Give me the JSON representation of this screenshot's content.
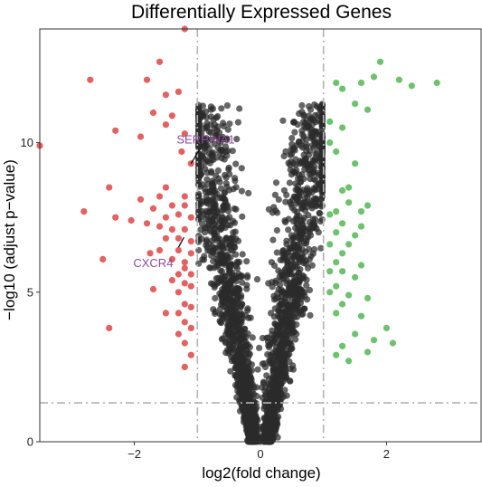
{
  "chart_data": {
    "type": "scatter",
    "title": "Differentially Expressed Genes",
    "xlabel": "log2(fold change)",
    "ylabel": "−log10 (adjust p−value)",
    "xlim": [
      -3.5,
      3.5
    ],
    "ylim": [
      0,
      13.8
    ],
    "x_ticks": [
      -2,
      0,
      2
    ],
    "x_tick_labels": [
      "−2",
      "0",
      "2"
    ],
    "y_ticks": [
      0,
      5,
      10
    ],
    "y_tick_labels": [
      "0",
      "5",
      "10"
    ],
    "grid": false,
    "thresholds": {
      "log2fc": [
        -1,
        1
      ],
      "neg_log10_padj": 1.3
    },
    "colors": {
      "down": "#e05050",
      "up": "#5dbb5d",
      "ns": "#2b2b2b",
      "threshold_line": "#b3b3b3",
      "label": "#8e4a9e",
      "frame": "#333333"
    },
    "series": [
      {
        "class": "down",
        "points": [
          [
            -1.2,
            13.8
          ],
          [
            -1.6,
            12.7
          ],
          [
            -2.7,
            12.1
          ],
          [
            -1.8,
            12.1
          ],
          [
            -1.5,
            11.6
          ],
          [
            -1.3,
            11.7
          ],
          [
            -1.7,
            11.0
          ],
          [
            -1.4,
            10.9
          ],
          [
            -2.3,
            10.4
          ],
          [
            -1.5,
            10.6
          ],
          [
            -1.2,
            10.3
          ],
          [
            -1.9,
            10.2
          ],
          [
            -3.5,
            9.9
          ],
          [
            -1.25,
            9.7
          ],
          [
            -1.1,
            9.3
          ],
          [
            -2.4,
            8.5
          ],
          [
            -1.5,
            8.5
          ],
          [
            -1.6,
            8.2
          ],
          [
            -1.2,
            8.2
          ],
          [
            -1.9,
            8.1
          ],
          [
            -1.7,
            7.8
          ],
          [
            -1.4,
            7.9
          ],
          [
            -1.2,
            7.9
          ],
          [
            -2.8,
            7.7
          ],
          [
            -1.5,
            7.5
          ],
          [
            -1.3,
            7.6
          ],
          [
            -1.1,
            7.5
          ],
          [
            -2.3,
            7.5
          ],
          [
            -2.05,
            7.4
          ],
          [
            -1.8,
            7.3
          ],
          [
            -1.6,
            7.2
          ],
          [
            -1.4,
            7.1
          ],
          [
            -1.2,
            7.1
          ],
          [
            -1.5,
            6.8
          ],
          [
            -1.3,
            6.8
          ],
          [
            -1.1,
            6.7
          ],
          [
            -1.75,
            6.3
          ],
          [
            -1.6,
            6.4
          ],
          [
            -1.3,
            6.4
          ],
          [
            -1.1,
            6.3
          ],
          [
            -2.5,
            6.1
          ],
          [
            -1.4,
            6.1
          ],
          [
            -1.2,
            6.0
          ],
          [
            -1.2,
            5.8
          ],
          [
            -1.3,
            5.6
          ],
          [
            -1.1,
            5.6
          ],
          [
            -1.4,
            5.4
          ],
          [
            -1.2,
            5.3
          ],
          [
            -1.1,
            5.2
          ],
          [
            -1.7,
            5.1
          ],
          [
            -1.3,
            5.0
          ],
          [
            -1.2,
            4.6
          ],
          [
            -1.1,
            4.5
          ],
          [
            -1.5,
            4.3
          ],
          [
            -1.3,
            4.3
          ],
          [
            -1.2,
            4.0
          ],
          [
            -1.1,
            3.8
          ],
          [
            -2.4,
            3.8
          ],
          [
            -1.3,
            3.6
          ],
          [
            -1.2,
            3.3
          ],
          [
            -1.1,
            2.9
          ],
          [
            -1.2,
            2.5
          ]
        ]
      },
      {
        "class": "up",
        "points": [
          [
            1.9,
            12.7
          ],
          [
            1.8,
            12.2
          ],
          [
            2.2,
            12.1
          ],
          [
            2.8,
            12.0
          ],
          [
            2.4,
            11.9
          ],
          [
            1.6,
            12.0
          ],
          [
            1.3,
            11.8
          ],
          [
            1.2,
            12.0
          ],
          [
            1.5,
            11.3
          ],
          [
            1.7,
            11.1
          ],
          [
            1.1,
            10.7
          ],
          [
            1.3,
            10.5
          ],
          [
            1.1,
            10.0
          ],
          [
            1.2,
            9.7
          ],
          [
            1.5,
            9.3
          ],
          [
            1.4,
            8.5
          ],
          [
            1.3,
            8.4
          ],
          [
            1.4,
            8.0
          ],
          [
            1.2,
            7.7
          ],
          [
            1.6,
            7.7
          ],
          [
            1.7,
            7.9
          ],
          [
            1.1,
            7.6
          ],
          [
            1.3,
            7.3
          ],
          [
            1.6,
            7.2
          ],
          [
            1.2,
            7.0
          ],
          [
            1.5,
            6.9
          ],
          [
            1.1,
            6.6
          ],
          [
            1.4,
            6.6
          ],
          [
            1.3,
            6.3
          ],
          [
            1.2,
            6.0
          ],
          [
            1.6,
            5.9
          ],
          [
            1.3,
            5.7
          ],
          [
            1.1,
            5.7
          ],
          [
            1.5,
            5.5
          ],
          [
            1.2,
            5.2
          ],
          [
            1.1,
            5.0
          ],
          [
            1.4,
            4.9
          ],
          [
            1.7,
            4.8
          ],
          [
            1.3,
            4.6
          ],
          [
            1.2,
            4.3
          ],
          [
            1.6,
            4.2
          ],
          [
            2.0,
            3.8
          ],
          [
            1.5,
            3.6
          ],
          [
            1.8,
            3.4
          ],
          [
            2.1,
            3.3
          ],
          [
            1.3,
            3.2
          ],
          [
            1.7,
            3.0
          ],
          [
            1.2,
            2.9
          ],
          [
            1.4,
            2.7
          ]
        ]
      }
    ],
    "ns_points_approx_count": 2600,
    "annotations": [
      {
        "text": "SERPINA1",
        "x": -1.1,
        "y": 9.3
      },
      {
        "text": "CXCR4",
        "x": -1.3,
        "y": 6.5
      }
    ]
  }
}
